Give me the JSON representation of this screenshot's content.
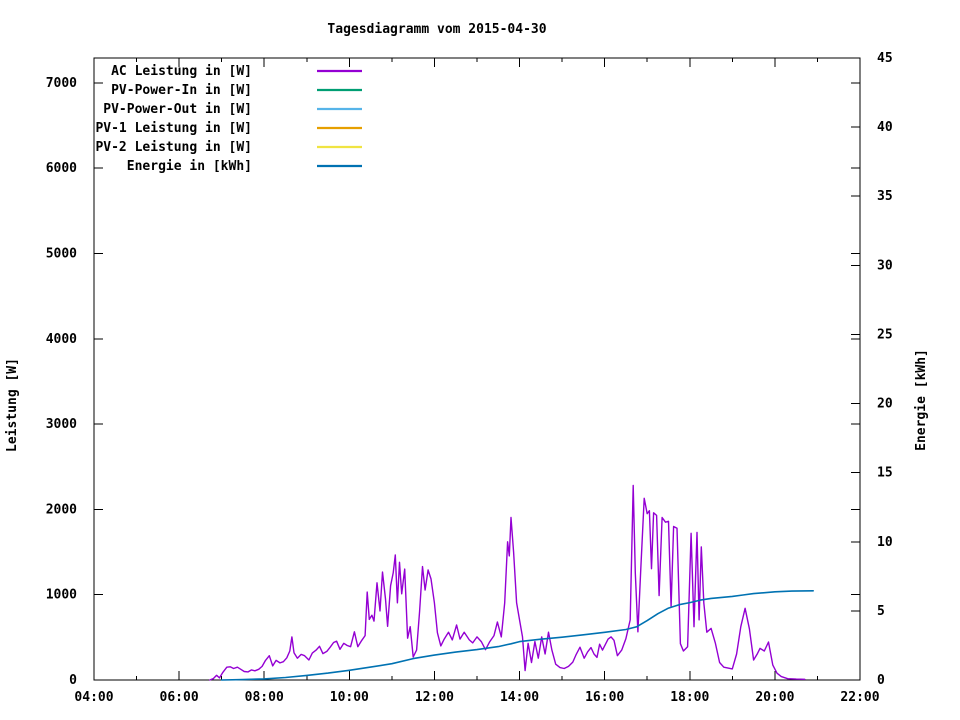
{
  "title": "Tagesdiagramm vom 2015-04-30",
  "chart_data": {
    "type": "line",
    "title": "Tagesdiagramm vom 2015-04-30",
    "grid": false,
    "legend_position": "top-left-inside",
    "x_axis": {
      "unit": "time",
      "range_hours": [
        4,
        22
      ],
      "major_tick_labels": [
        "04:00",
        "06:00",
        "08:00",
        "10:00",
        "12:00",
        "14:00",
        "16:00",
        "18:00",
        "20:00",
        "22:00"
      ],
      "major_tick_every_hours": 2,
      "minor_tick_every_hours": 1
    },
    "y_left": {
      "label": "Leistung [W]",
      "ticks": [
        0,
        1000,
        2000,
        3000,
        4000,
        5000,
        6000,
        7000
      ],
      "range": [
        0,
        7292
      ]
    },
    "y_right": {
      "label": "Energie [kWh]",
      "ticks": [
        0,
        5,
        10,
        15,
        20,
        25,
        30,
        35,
        40,
        45
      ],
      "range": [
        0,
        45
      ]
    },
    "series": [
      {
        "name": "AC Leistung in [W]",
        "color": "#9400d3",
        "axis": "left",
        "width": 1.4,
        "points": [
          [
            6.72,
            0
          ],
          [
            6.8,
            15
          ],
          [
            6.88,
            55
          ],
          [
            6.95,
            25
          ],
          [
            7.03,
            90
          ],
          [
            7.12,
            150
          ],
          [
            7.2,
            155
          ],
          [
            7.28,
            135
          ],
          [
            7.37,
            150
          ],
          [
            7.45,
            125
          ],
          [
            7.53,
            100
          ],
          [
            7.62,
            95
          ],
          [
            7.7,
            118
          ],
          [
            7.78,
            108
          ],
          [
            7.87,
            125
          ],
          [
            7.95,
            160
          ],
          [
            8.03,
            230
          ],
          [
            8.12,
            285
          ],
          [
            8.2,
            165
          ],
          [
            8.28,
            230
          ],
          [
            8.37,
            200
          ],
          [
            8.45,
            215
          ],
          [
            8.53,
            260
          ],
          [
            8.6,
            340
          ],
          [
            8.65,
            505
          ],
          [
            8.7,
            320
          ],
          [
            8.78,
            255
          ],
          [
            8.87,
            300
          ],
          [
            8.95,
            285
          ],
          [
            9.05,
            235
          ],
          [
            9.13,
            315
          ],
          [
            9.22,
            350
          ],
          [
            9.3,
            395
          ],
          [
            9.38,
            310
          ],
          [
            9.47,
            335
          ],
          [
            9.55,
            385
          ],
          [
            9.63,
            440
          ],
          [
            9.7,
            455
          ],
          [
            9.78,
            360
          ],
          [
            9.87,
            430
          ],
          [
            9.95,
            405
          ],
          [
            10.03,
            390
          ],
          [
            10.12,
            565
          ],
          [
            10.2,
            390
          ],
          [
            10.28,
            455
          ],
          [
            10.37,
            520
          ],
          [
            10.42,
            1030
          ],
          [
            10.47,
            710
          ],
          [
            10.53,
            760
          ],
          [
            10.58,
            690
          ],
          [
            10.65,
            1140
          ],
          [
            10.72,
            810
          ],
          [
            10.78,
            1265
          ],
          [
            10.85,
            950
          ],
          [
            10.9,
            630
          ],
          [
            10.97,
            1105
          ],
          [
            11.03,
            1255
          ],
          [
            11.08,
            1465
          ],
          [
            11.13,
            905
          ],
          [
            11.18,
            1380
          ],
          [
            11.23,
            1010
          ],
          [
            11.3,
            1300
          ],
          [
            11.37,
            490
          ],
          [
            11.43,
            625
          ],
          [
            11.5,
            270
          ],
          [
            11.58,
            350
          ],
          [
            11.65,
            805
          ],
          [
            11.72,
            1330
          ],
          [
            11.78,
            1055
          ],
          [
            11.85,
            1290
          ],
          [
            11.92,
            1185
          ],
          [
            12.0,
            905
          ],
          [
            12.07,
            555
          ],
          [
            12.15,
            400
          ],
          [
            12.23,
            480
          ],
          [
            12.33,
            560
          ],
          [
            12.42,
            470
          ],
          [
            12.52,
            645
          ],
          [
            12.6,
            480
          ],
          [
            12.7,
            560
          ],
          [
            12.82,
            470
          ],
          [
            12.9,
            435
          ],
          [
            13.0,
            505
          ],
          [
            13.1,
            450
          ],
          [
            13.2,
            355
          ],
          [
            13.3,
            450
          ],
          [
            13.4,
            520
          ],
          [
            13.48,
            680
          ],
          [
            13.57,
            505
          ],
          [
            13.65,
            905
          ],
          [
            13.72,
            1620
          ],
          [
            13.76,
            1455
          ],
          [
            13.8,
            1905
          ],
          [
            13.86,
            1500
          ],
          [
            13.93,
            905
          ],
          [
            14.0,
            700
          ],
          [
            14.07,
            505
          ],
          [
            14.13,
            110
          ],
          [
            14.2,
            430
          ],
          [
            14.28,
            205
          ],
          [
            14.36,
            450
          ],
          [
            14.44,
            255
          ],
          [
            14.52,
            505
          ],
          [
            14.6,
            305
          ],
          [
            14.68,
            560
          ],
          [
            14.76,
            350
          ],
          [
            14.85,
            185
          ],
          [
            14.95,
            145
          ],
          [
            15.05,
            135
          ],
          [
            15.15,
            160
          ],
          [
            15.25,
            210
          ],
          [
            15.33,
            300
          ],
          [
            15.42,
            385
          ],
          [
            15.52,
            255
          ],
          [
            15.6,
            330
          ],
          [
            15.68,
            380
          ],
          [
            15.75,
            305
          ],
          [
            15.82,
            265
          ],
          [
            15.88,
            420
          ],
          [
            15.95,
            350
          ],
          [
            16.02,
            420
          ],
          [
            16.08,
            480
          ],
          [
            16.15,
            505
          ],
          [
            16.22,
            465
          ],
          [
            16.3,
            285
          ],
          [
            16.4,
            350
          ],
          [
            16.5,
            485
          ],
          [
            16.6,
            705
          ],
          [
            16.67,
            2280
          ],
          [
            16.72,
            1255
          ],
          [
            16.78,
            565
          ],
          [
            16.85,
            1305
          ],
          [
            16.93,
            2130
          ],
          [
            17.0,
            1950
          ],
          [
            17.05,
            1985
          ],
          [
            17.1,
            1305
          ],
          [
            17.15,
            1960
          ],
          [
            17.22,
            1930
          ],
          [
            17.28,
            990
          ],
          [
            17.35,
            1905
          ],
          [
            17.43,
            1850
          ],
          [
            17.5,
            1860
          ],
          [
            17.56,
            860
          ],
          [
            17.62,
            1800
          ],
          [
            17.7,
            1780
          ],
          [
            17.78,
            425
          ],
          [
            17.85,
            340
          ],
          [
            17.95,
            390
          ],
          [
            18.03,
            1720
          ],
          [
            18.1,
            625
          ],
          [
            18.17,
            1730
          ],
          [
            18.22,
            705
          ],
          [
            18.27,
            1560
          ],
          [
            18.33,
            905
          ],
          [
            18.4,
            560
          ],
          [
            18.5,
            605
          ],
          [
            18.6,
            435
          ],
          [
            18.7,
            205
          ],
          [
            18.8,
            150
          ],
          [
            18.9,
            140
          ],
          [
            19.0,
            130
          ],
          [
            19.1,
            305
          ],
          [
            19.2,
            625
          ],
          [
            19.3,
            840
          ],
          [
            19.4,
            600
          ],
          [
            19.5,
            235
          ],
          [
            19.58,
            300
          ],
          [
            19.65,
            370
          ],
          [
            19.75,
            340
          ],
          [
            19.85,
            445
          ],
          [
            19.95,
            175
          ],
          [
            20.05,
            80
          ],
          [
            20.15,
            40
          ],
          [
            20.3,
            15
          ],
          [
            20.5,
            10
          ],
          [
            20.7,
            8
          ]
        ]
      },
      {
        "name": "PV-Power-In in [W]",
        "color": "#009e73",
        "axis": "left",
        "width": 1.4,
        "points": []
      },
      {
        "name": "PV-Power-Out in [W]",
        "color": "#56b4e9",
        "axis": "left",
        "width": 1.4,
        "points": []
      },
      {
        "name": "PV-1 Leistung in [W]",
        "color": "#e69f00",
        "axis": "left",
        "width": 1.4,
        "points": []
      },
      {
        "name": "PV-2 Leistung in [W]",
        "color": "#f0e442",
        "axis": "left",
        "width": 1.4,
        "points": []
      },
      {
        "name": "Energie in [kWh]",
        "color": "#0072b2",
        "axis": "right",
        "width": 1.6,
        "points": [
          [
            7.0,
            0
          ],
          [
            7.5,
            0.03
          ],
          [
            8.0,
            0.08
          ],
          [
            8.5,
            0.18
          ],
          [
            9.0,
            0.33
          ],
          [
            9.5,
            0.5
          ],
          [
            10.0,
            0.7
          ],
          [
            10.5,
            0.93
          ],
          [
            11.0,
            1.18
          ],
          [
            11.5,
            1.55
          ],
          [
            12.0,
            1.8
          ],
          [
            12.5,
            2.02
          ],
          [
            13.0,
            2.2
          ],
          [
            13.5,
            2.42
          ],
          [
            13.8,
            2.62
          ],
          [
            14.0,
            2.78
          ],
          [
            14.5,
            2.95
          ],
          [
            15.0,
            3.1
          ],
          [
            15.5,
            3.27
          ],
          [
            16.0,
            3.45
          ],
          [
            16.5,
            3.65
          ],
          [
            16.75,
            3.85
          ],
          [
            17.0,
            4.3
          ],
          [
            17.25,
            4.8
          ],
          [
            17.5,
            5.2
          ],
          [
            17.75,
            5.45
          ],
          [
            18.0,
            5.6
          ],
          [
            18.25,
            5.78
          ],
          [
            18.5,
            5.9
          ],
          [
            19.0,
            6.05
          ],
          [
            19.25,
            6.15
          ],
          [
            19.5,
            6.25
          ],
          [
            20.0,
            6.38
          ],
          [
            20.4,
            6.43
          ],
          [
            20.9,
            6.45
          ]
        ]
      }
    ]
  }
}
